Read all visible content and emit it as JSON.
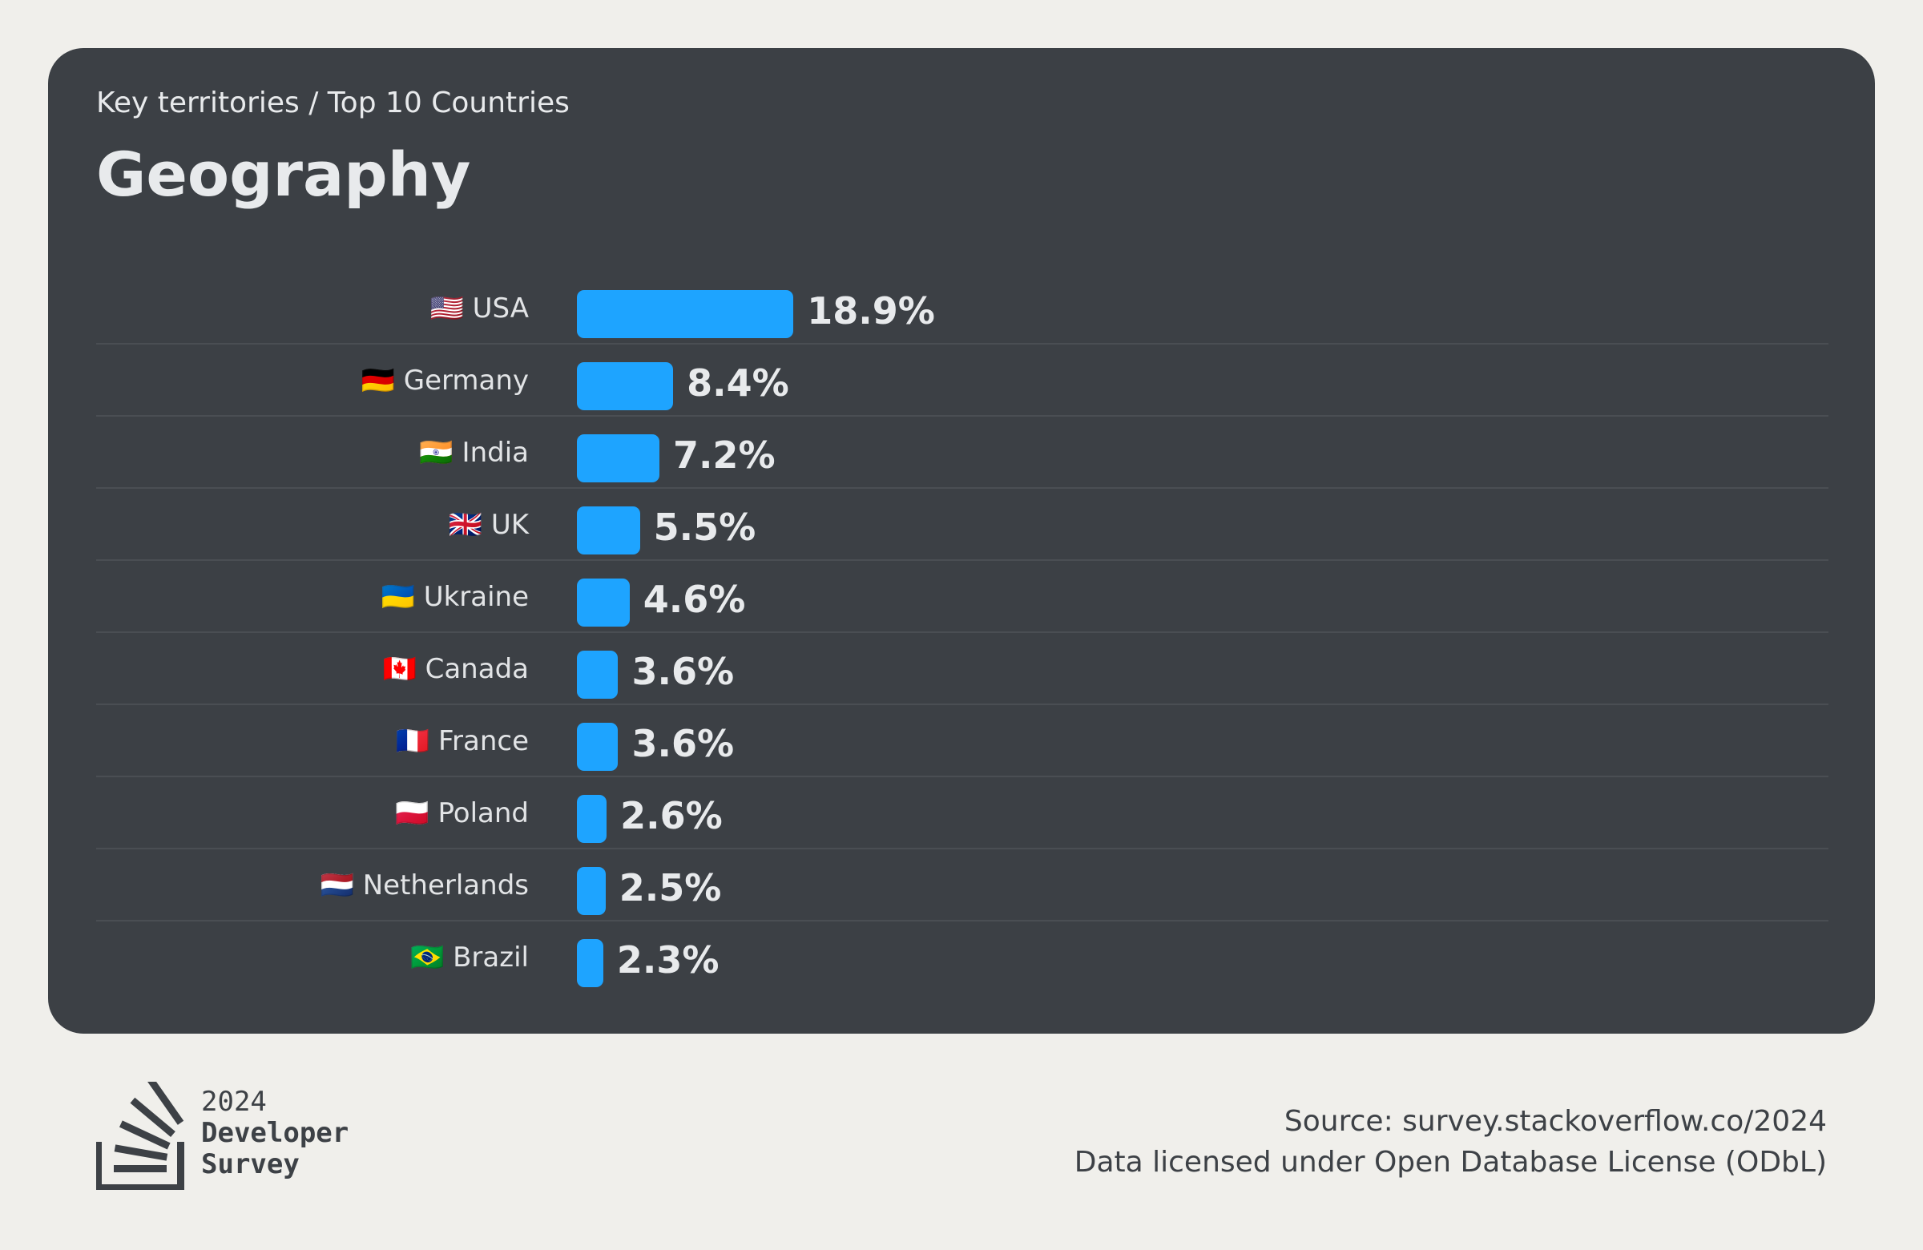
{
  "header": {
    "breadcrumb": "Key territories / Top 10 Countries",
    "title": "Geography"
  },
  "chart_data": {
    "type": "bar",
    "orientation": "horizontal",
    "categories": [
      "🇺🇸 USA",
      "🇩🇪 Germany",
      "🇮🇳 India",
      "🇬🇧 UK",
      "🇺🇦 Ukraine",
      "🇨🇦 Canada",
      "🇫🇷 France",
      "🇵🇱 Poland",
      "🇳🇱 Netherlands",
      "🇧🇷 Brazil"
    ],
    "values": [
      18.9,
      8.4,
      7.2,
      5.5,
      4.6,
      3.6,
      3.6,
      2.6,
      2.5,
      2.3
    ],
    "value_labels": [
      "18.9%",
      "8.4%",
      "7.2%",
      "5.5%",
      "4.6%",
      "3.6%",
      "3.6%",
      "2.6%",
      "2.5%",
      "2.3%"
    ],
    "unit": "%",
    "bar_color": "#1ea4ff",
    "grid": false,
    "legend": "none"
  },
  "footer": {
    "logo_icon": "stackoverflow-logo-icon",
    "logo_year": "2024",
    "logo_line1": "Developer",
    "logo_line2": "Survey",
    "source": "Source: survey.stackoverflow.co/2024",
    "license": "Data licensed under Open Database License (ODbL)"
  },
  "colors": {
    "background": "#f0efeb",
    "card": "#3c4045",
    "accent": "#1ea4ff",
    "text_light": "#e8eaec",
    "text_dark": "#3d4146"
  }
}
